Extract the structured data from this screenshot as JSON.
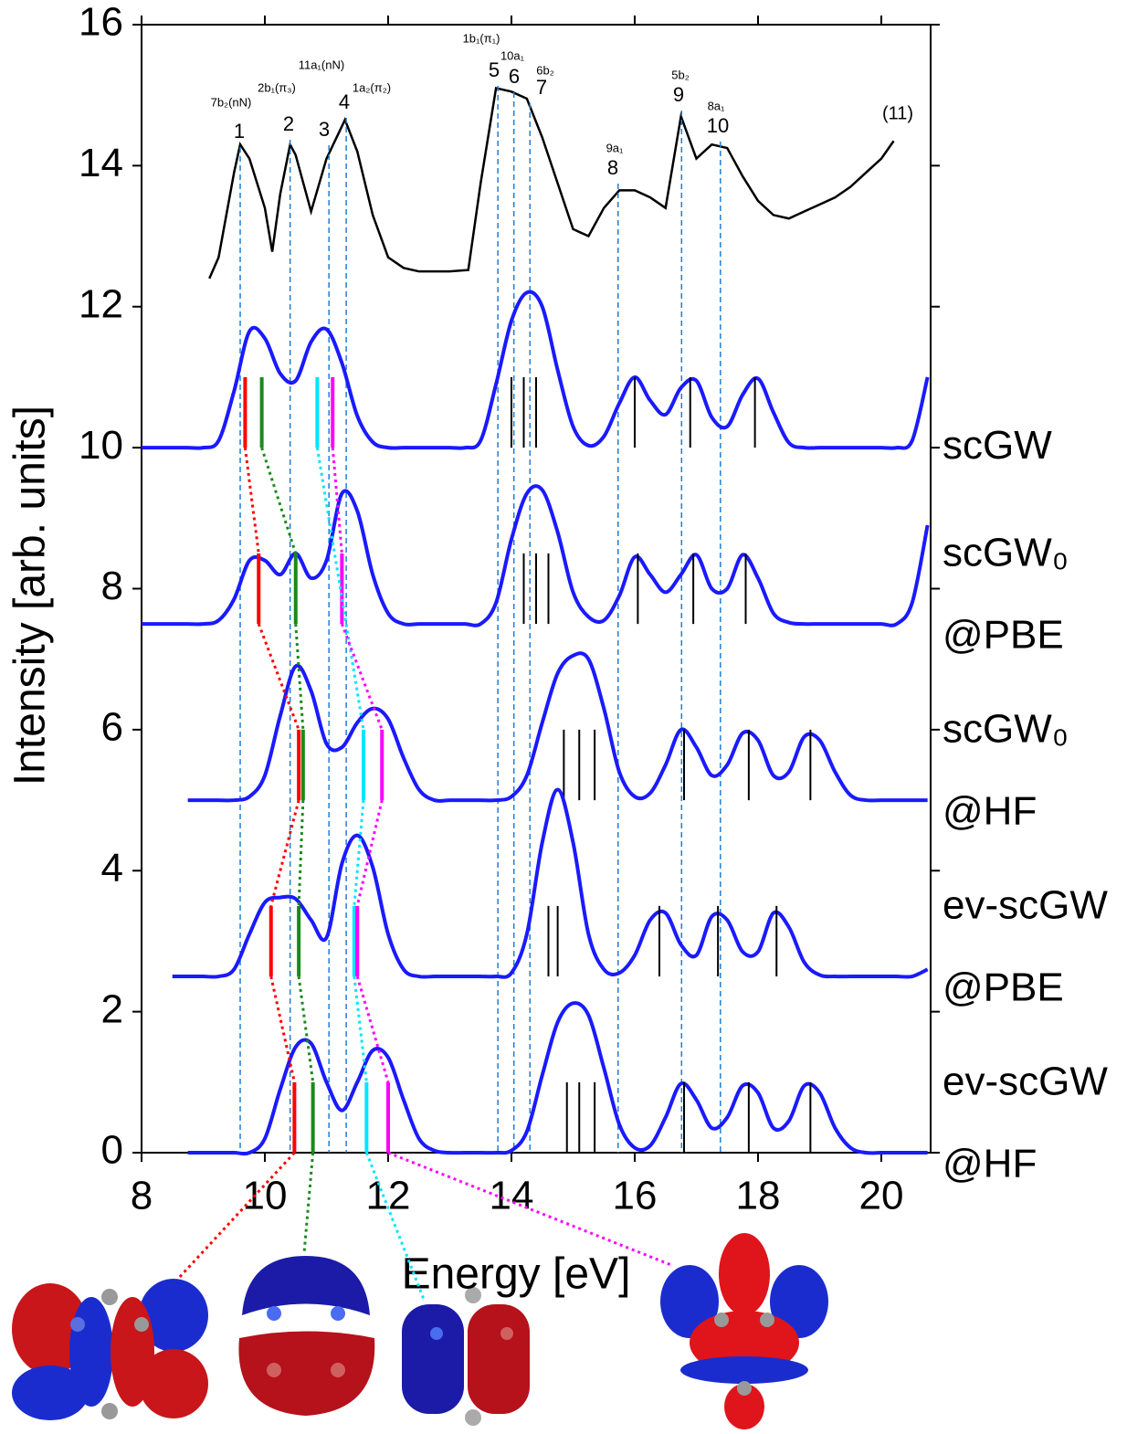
{
  "chart_data": {
    "type": "line",
    "xlabel": "Energy [eV]",
    "ylabel": "Intensity [arb. units]",
    "xlim": [
      8,
      20.8
    ],
    "ylim": [
      0,
      16
    ],
    "xticks": [
      8,
      10,
      12,
      14,
      16,
      18,
      20
    ],
    "yticks": [
      0,
      2,
      4,
      6,
      8,
      10,
      12,
      14,
      16
    ],
    "stick_height": 1,
    "x": [
      8,
      8.25,
      8.5,
      8.75,
      9,
      9.25,
      9.5,
      9.75,
      10,
      10.25,
      10.5,
      10.75,
      11,
      11.25,
      11.5,
      11.75,
      12,
      12.25,
      12.5,
      12.75,
      13,
      13.25,
      13.5,
      13.75,
      14,
      14.25,
      14.5,
      14.75,
      15,
      15.25,
      15.5,
      15.75,
      16,
      16.25,
      16.5,
      16.75,
      17,
      17.25,
      17.5,
      17.75,
      18,
      18.25,
      18.5,
      18.75,
      19,
      19.25,
      19.5,
      19.75,
      20,
      20.25,
      20.5,
      20.75
    ],
    "experiment": {
      "color": "#000000",
      "x": [
        9.1,
        9.25,
        9.5,
        9.6,
        9.75,
        10.0,
        10.12,
        10.25,
        10.41,
        10.5,
        10.75,
        11.0,
        11.3,
        11.5,
        11.75,
        12.0,
        12.25,
        12.5,
        12.75,
        13.0,
        13.3,
        13.5,
        13.75,
        14.0,
        14.25,
        14.5,
        14.75,
        15.0,
        15.25,
        15.5,
        15.75,
        16.0,
        16.25,
        16.5,
        16.75,
        17.0,
        17.25,
        17.5,
        17.75,
        18.0,
        18.25,
        18.5,
        18.75,
        19.0,
        19.25,
        19.5,
        19.75,
        20.0,
        20.2
      ],
      "values": [
        12.4,
        12.7,
        13.9,
        14.3,
        14.1,
        13.4,
        12.78,
        13.6,
        14.3,
        14.15,
        13.35,
        14.1,
        14.65,
        14.2,
        13.3,
        12.7,
        12.55,
        12.5,
        12.5,
        12.5,
        12.52,
        13.75,
        15.1,
        15.05,
        14.95,
        14.4,
        13.75,
        13.1,
        13.0,
        13.4,
        13.65,
        13.65,
        13.55,
        13.4,
        14.7,
        14.1,
        14.3,
        14.25,
        13.85,
        13.5,
        13.3,
        13.25,
        13.35,
        13.45,
        13.55,
        13.7,
        13.9,
        14.1,
        14.35
      ],
      "peaks": [
        {
          "label": "1",
          "orbital": "7b₂(nN)",
          "energy": 9.6
        },
        {
          "label": "2",
          "orbital": "2b₁(π₃)",
          "energy": 10.41
        },
        {
          "label": "3",
          "orbital": "11a₁(nN)",
          "energy": 11.04
        },
        {
          "label": "4",
          "orbital": "1a₂(π₂)",
          "energy": 11.32
        },
        {
          "label": "5",
          "orbital": "1b₁(π₁)",
          "energy": 13.78
        },
        {
          "label": "6",
          "orbital": "10a₁",
          "energy": 14.04
        },
        {
          "label": "7",
          "orbital": "6b₂",
          "energy": 14.3
        },
        {
          "label": "8",
          "orbital": "9a₁",
          "energy": 15.73
        },
        {
          "label": "9",
          "orbital": "5b₂",
          "energy": 16.76
        },
        {
          "label": "10",
          "orbital": "8a₁",
          "energy": 17.39
        }
      ],
      "extra_label": "(11)"
    },
    "series": [
      {
        "label": [
          "scGW"
        ],
        "color": "#1a1aff",
        "offset": 10,
        "values": [
          10,
          10,
          10,
          10,
          10,
          10.1,
          10.8,
          11.65,
          11.55,
          11.05,
          10.95,
          11.5,
          11.68,
          11.2,
          10.45,
          10.08,
          10,
          10,
          10,
          10,
          10,
          10,
          10.1,
          10.9,
          11.8,
          12.2,
          12.0,
          11.1,
          10.3,
          10.03,
          10.16,
          10.63,
          11.0,
          10.67,
          10.47,
          10.85,
          10.95,
          10.43,
          10.3,
          10.75,
          10.98,
          10.5,
          10.07,
          10,
          10,
          10,
          10,
          10,
          10,
          10,
          10.1,
          11.0
        ],
        "sticks": [
          {
            "energy": 9.68,
            "color": "#ff0000"
          },
          {
            "energy": 9.95,
            "color": "#1a8a1a"
          },
          {
            "energy": 10.85,
            "color": "#00e5ff"
          },
          {
            "energy": 11.1,
            "color": "#ff00ff"
          },
          {
            "energy": 14.0,
            "color": "#000000"
          },
          {
            "energy": 14.2,
            "color": "#000000"
          },
          {
            "energy": 14.4,
            "color": "#000000"
          },
          {
            "energy": 16.0,
            "color": "#000000"
          },
          {
            "energy": 16.9,
            "color": "#000000"
          },
          {
            "energy": 17.95,
            "color": "#000000"
          }
        ]
      },
      {
        "label": [
          "scGW₀",
          "@PBE"
        ],
        "color": "#1a1aff",
        "offset": 7.5,
        "values": [
          7.5,
          7.5,
          7.5,
          7.5,
          7.5,
          7.55,
          7.85,
          8.4,
          8.4,
          8.2,
          8.5,
          8.15,
          8.4,
          9.35,
          9.1,
          8.2,
          7.65,
          7.5,
          7.5,
          7.5,
          7.5,
          7.5,
          7.5,
          7.8,
          8.7,
          9.35,
          9.4,
          8.8,
          7.95,
          7.6,
          7.55,
          7.9,
          8.45,
          8.2,
          7.95,
          8.2,
          8.48,
          8.0,
          8.0,
          8.48,
          8.15,
          7.65,
          7.52,
          7.5,
          7.5,
          7.5,
          7.5,
          7.5,
          7.5,
          7.5,
          7.8,
          8.9
        ],
        "sticks": [
          {
            "energy": 9.9,
            "color": "#ff0000"
          },
          {
            "energy": 10.5,
            "color": "#1a8a1a"
          },
          {
            "energy": 11.25,
            "color": "#ff00ff"
          },
          {
            "energy": 14.2,
            "color": "#000000"
          },
          {
            "energy": 14.4,
            "color": "#000000"
          },
          {
            "energy": 14.6,
            "color": "#000000"
          },
          {
            "energy": 16.05,
            "color": "#000000"
          },
          {
            "energy": 16.95,
            "color": "#000000"
          },
          {
            "energy": 17.8,
            "color": "#000000"
          }
        ]
      },
      {
        "label": [
          "scGW₀",
          "@HF"
        ],
        "color": "#1a1aff",
        "offset": 5,
        "values": [
          null,
          null,
          null,
          5.0,
          5.0,
          5.0,
          5.0,
          5.05,
          5.35,
          6.2,
          6.9,
          6.55,
          5.8,
          5.75,
          6.1,
          6.3,
          6.15,
          5.6,
          5.15,
          5.0,
          5.0,
          5.0,
          5.0,
          5.0,
          5.05,
          5.35,
          6.1,
          6.8,
          7.05,
          7.0,
          6.3,
          5.4,
          5.05,
          5.1,
          5.5,
          6.0,
          5.75,
          5.35,
          5.5,
          5.95,
          5.85,
          5.35,
          5.4,
          5.9,
          5.85,
          5.4,
          5.07,
          5.0,
          5.0,
          5.0,
          5.0,
          5.0
        ],
        "sticks": [
          {
            "energy": 10.55,
            "color": "#ff0000"
          },
          {
            "energy": 10.62,
            "color": "#1a8a1a"
          },
          {
            "energy": 11.6,
            "color": "#00e5ff"
          },
          {
            "energy": 11.9,
            "color": "#ff00ff"
          },
          {
            "energy": 14.85,
            "color": "#000000"
          },
          {
            "energy": 15.1,
            "color": "#000000"
          },
          {
            "energy": 15.35,
            "color": "#000000"
          },
          {
            "energy": 16.8,
            "color": "#000000"
          },
          {
            "energy": 17.85,
            "color": "#000000"
          },
          {
            "energy": 18.85,
            "color": "#000000"
          }
        ]
      },
      {
        "label": [
          "ev-scGW",
          "@PBE"
        ],
        "color": "#1a1aff",
        "offset": 2.5,
        "values": [
          null,
          null,
          2.5,
          2.5,
          2.5,
          2.5,
          2.6,
          3.1,
          3.55,
          3.62,
          3.6,
          3.3,
          3.05,
          4.1,
          4.5,
          4.05,
          3.1,
          2.6,
          2.5,
          2.5,
          2.5,
          2.5,
          2.5,
          2.5,
          2.55,
          3.1,
          4.4,
          5.15,
          4.4,
          3.1,
          2.6,
          2.55,
          2.8,
          3.3,
          3.4,
          2.95,
          2.8,
          3.35,
          3.3,
          2.85,
          2.85,
          3.4,
          3.2,
          2.7,
          2.52,
          2.5,
          2.5,
          2.5,
          2.5,
          2.5,
          2.5,
          2.6
        ],
        "sticks": [
          {
            "energy": 10.1,
            "color": "#ff0000"
          },
          {
            "energy": 10.55,
            "color": "#1a8a1a"
          },
          {
            "energy": 11.45,
            "color": "#00e5ff"
          },
          {
            "energy": 11.5,
            "color": "#ff00ff"
          },
          {
            "energy": 14.6,
            "color": "#000000"
          },
          {
            "energy": 14.75,
            "color": "#000000"
          },
          {
            "energy": 16.4,
            "color": "#000000"
          },
          {
            "energy": 17.35,
            "color": "#000000"
          },
          {
            "energy": 18.3,
            "color": "#000000"
          }
        ]
      },
      {
        "label": [
          "ev-scGW",
          "@HF"
        ],
        "color": "#1a1aff",
        "offset": 0,
        "values": [
          null,
          null,
          null,
          0,
          0,
          0,
          0,
          0,
          0.2,
          0.9,
          1.5,
          1.55,
          1.0,
          0.6,
          1.0,
          1.45,
          1.35,
          0.75,
          0.2,
          0.03,
          0,
          0,
          0,
          0,
          0.03,
          0.3,
          1.1,
          1.85,
          2.12,
          1.95,
          1.2,
          0.4,
          0.07,
          0.1,
          0.5,
          0.98,
          0.75,
          0.35,
          0.5,
          0.95,
          0.85,
          0.35,
          0.45,
          0.95,
          0.85,
          0.35,
          0.07,
          0,
          0,
          0,
          0,
          0
        ],
        "sticks": [
          {
            "energy": 10.48,
            "color": "#ff0000"
          },
          {
            "energy": 10.78,
            "color": "#1a8a1a"
          },
          {
            "energy": 11.65,
            "color": "#00e5ff"
          },
          {
            "energy": 12.0,
            "color": "#ff00ff"
          },
          {
            "energy": 14.9,
            "color": "#000000"
          },
          {
            "energy": 15.1,
            "color": "#000000"
          },
          {
            "energy": 15.35,
            "color": "#000000"
          },
          {
            "energy": 16.8,
            "color": "#000000"
          },
          {
            "energy": 17.85,
            "color": "#000000"
          },
          {
            "energy": 18.85,
            "color": "#000000"
          }
        ]
      }
    ]
  }
}
